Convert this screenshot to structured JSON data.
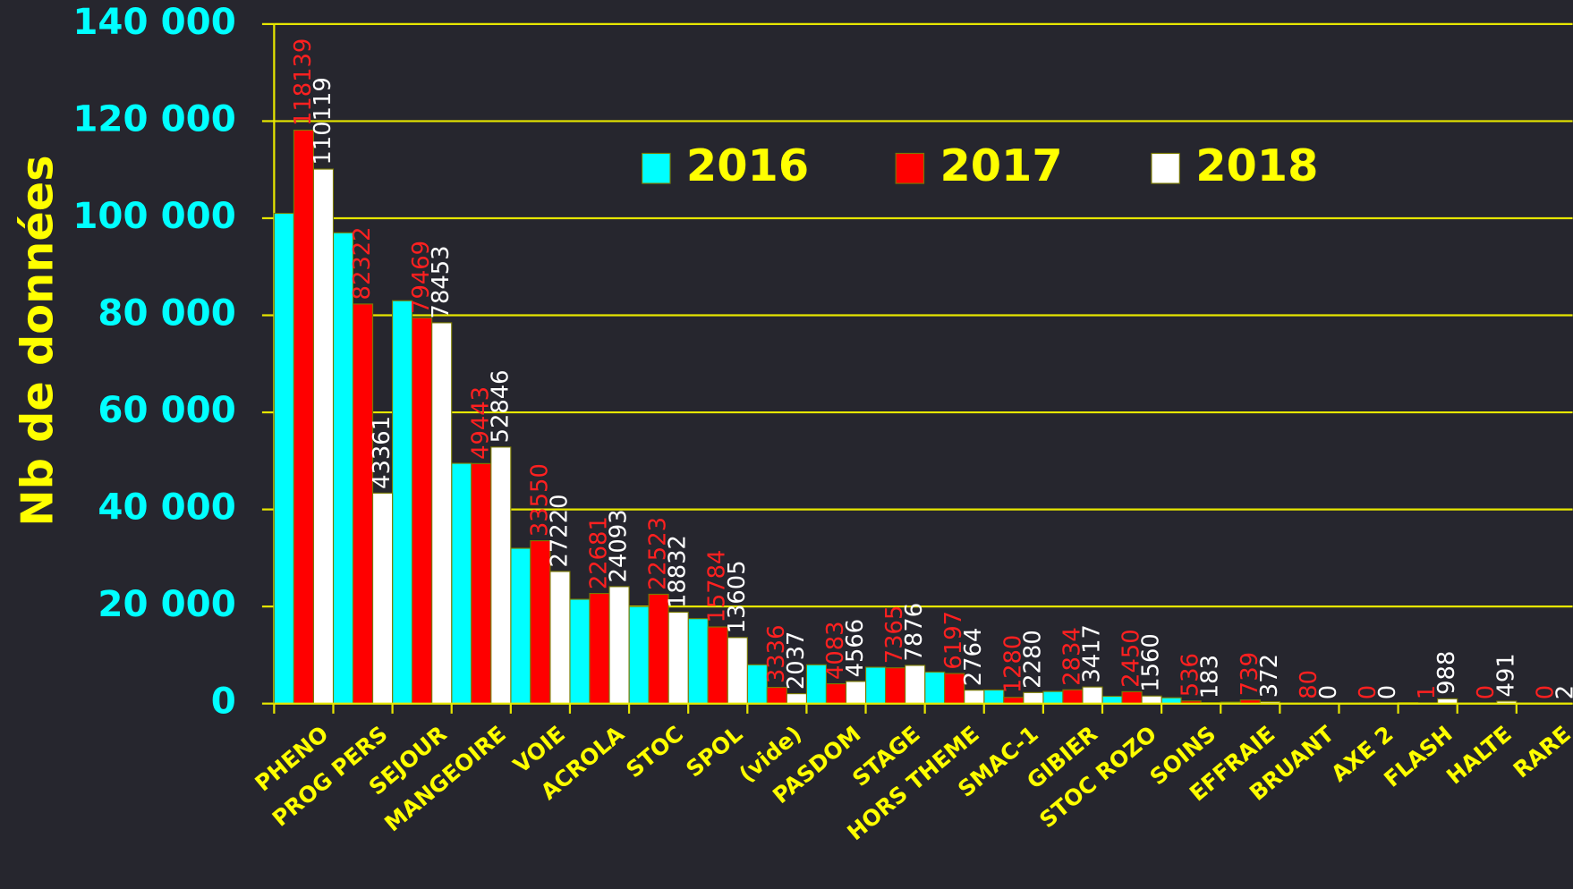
{
  "chart_data": {
    "type": "bar",
    "y_axis_label": "Nb de données",
    "categories": [
      "PHENO",
      "PROG PERS",
      "SEJOUR",
      "MANGEOIRE",
      "VOIE",
      "ACROLA",
      "STOC",
      "SPOL",
      "(vide)",
      "PASDOM",
      "STAGE",
      "HORS THEME",
      "SMAC-1",
      "GIBIER",
      "STOC ROZO",
      "SOINS",
      "EFFRAIE",
      "BRUANT",
      "AXE 2",
      "FLASH",
      "HALTE",
      "RARE"
    ],
    "series": [
      {
        "name": "2016",
        "color": "#00ffff",
        "values": [
          101000,
          97000,
          83000,
          49500,
          32000,
          21500,
          20000,
          17500,
          8000,
          8000,
          7500,
          6500,
          2800,
          2500,
          1500,
          1200,
          300,
          100,
          100,
          200,
          50,
          0
        ]
      },
      {
        "name": "2017",
        "color": "#ff0000",
        "label_color": "#ff2020",
        "values": [
          118139,
          82322,
          79469,
          49443,
          33550,
          22681,
          22523,
          15784,
          3336,
          4083,
          7365,
          6197,
          1280,
          2834,
          2450,
          536,
          739,
          80,
          0,
          1,
          0,
          0
        ]
      },
      {
        "name": "2018",
        "color": "#ffffff",
        "label_color": "#ffffff",
        "values": [
          110119,
          43361,
          78453,
          52846,
          27220,
          24093,
          18832,
          13605,
          2037,
          4566,
          7876,
          2764,
          2280,
          3417,
          1560,
          183,
          372,
          0,
          0,
          988,
          491,
          2
        ]
      }
    ],
    "ylim": [
      0,
      140000
    ],
    "yticks": [
      0,
      {
        "value": 20000,
        "label": "20 000"
      },
      {
        "value": 40000,
        "label": "40 000"
      },
      {
        "value": 60000,
        "label": "60 000"
      },
      {
        "value": 80000,
        "label": "80 000"
      },
      {
        "value": 100000,
        "label": "100 000"
      },
      {
        "value": 120000,
        "label": "120 000"
      },
      {
        "value": 140000,
        "label": "140 000"
      }
    ],
    "grid": true
  }
}
